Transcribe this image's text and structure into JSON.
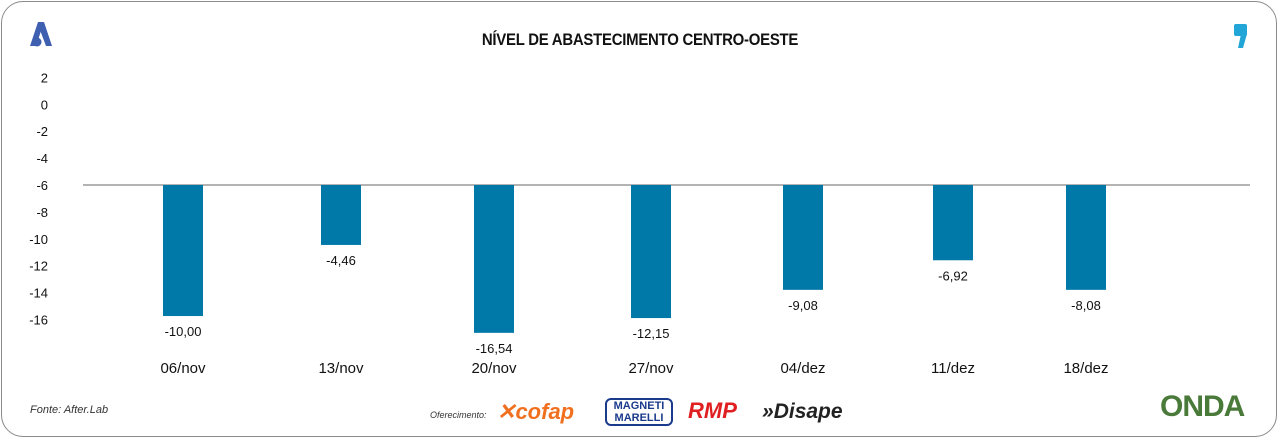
{
  "header": {
    "title": "NÍVEL DE ABASTECIMENTO CENTRO-OESTE"
  },
  "footer": {
    "source": "Fonte: After.Lab",
    "offer_label": "Oferecimento:",
    "sponsors": [
      "cofap",
      "MAGNETI MARELLI",
      "RMP",
      "Disape"
    ],
    "onda_logo": "ONDA"
  },
  "colors": {
    "bar": "#0078a8",
    "baseline": "#888888",
    "logo_a": "#3f5fb0",
    "logo_quote": "#22a6d8"
  },
  "chart_data": {
    "type": "bar",
    "title": "NÍVEL DE ABASTECIMENTO CENTRO-OESTE",
    "categories": [
      "06/nov",
      "13/nov",
      "20/nov",
      "27/nov",
      "04/dez",
      "11/dez",
      "18/dez"
    ],
    "values": [
      -10.0,
      -4.46,
      -16.54,
      -12.15,
      -9.08,
      -6.92,
      -8.08
    ],
    "value_labels": [
      "-10,00",
      "-4,46",
      "-16,54",
      "-12,15",
      "-9,08",
      "-6,92",
      "-8,08"
    ],
    "bar_start": -6,
    "bar_end": [
      -15.75,
      -10.46,
      -17.0,
      -15.9,
      -13.8,
      -11.6,
      -13.8
    ],
    "yticks": [
      "2",
      "0",
      "-2",
      "-4",
      "-6",
      "-8",
      "-10",
      "-12",
      "-14",
      "-16"
    ],
    "ylim": [
      -16,
      2
    ],
    "grid": false,
    "xlabel": "",
    "ylabel": ""
  }
}
